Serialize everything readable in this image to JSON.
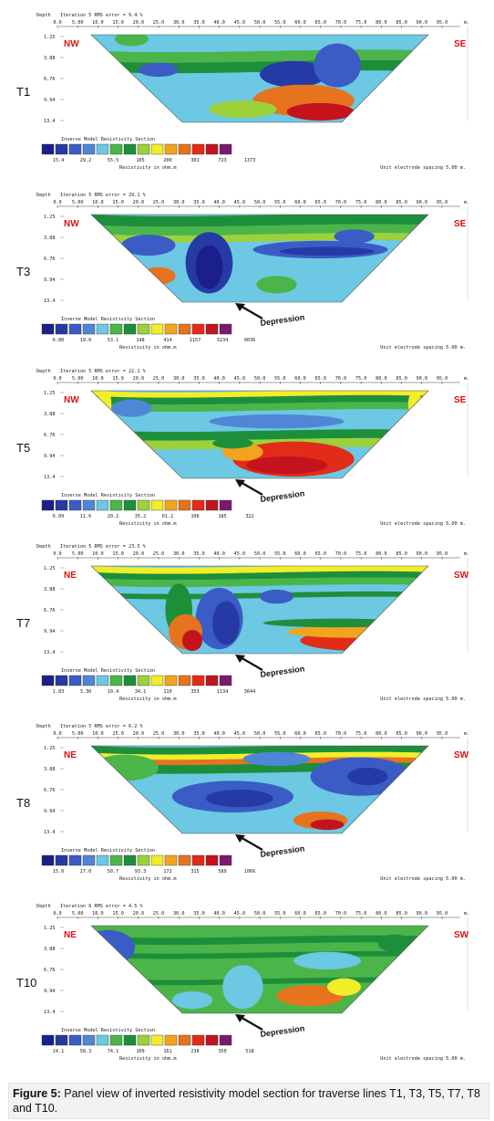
{
  "x_ticks": [
    "0.0",
    "5.00",
    "10.0",
    "15.0",
    "20.0",
    "25.0",
    "30.0",
    "35.0",
    "40.0",
    "45.0",
    "50.0",
    "55.0",
    "60.0",
    "65.0",
    "70.0",
    "75.0",
    "80.0",
    "85.0",
    "90.0",
    "95.0"
  ],
  "depth_label": "Depth",
  "x_unit": "m.",
  "legend_title": "Inverse Model Resistivity Section",
  "legend_units": "Resistivity in ohm.m",
  "spacing_text": "Unit electrode spacing 5.00 m.",
  "palette": [
    "#1a1f8c",
    "#263aa6",
    "#3a5cc4",
    "#4f86d6",
    "#6cc8e3",
    "#4cb54a",
    "#1d8f3a",
    "#9cd13a",
    "#f3ec28",
    "#f1a51e",
    "#e6731e",
    "#e32b1a",
    "#c4131d",
    "#7a1a6e"
  ],
  "depression_label": "Depression",
  "panels": [
    {
      "id": "T1",
      "label": "T1",
      "iteration": "Iteration 5 RMS error = 9.4 %",
      "left_dir": "NW",
      "right_dir": "SE",
      "depths": [
        "1.25",
        "3.88",
        "6.76",
        "9.94",
        "13.4"
      ],
      "legend_values": [
        "15.4",
        "29.2",
        "55.5",
        "105",
        "200",
        "381",
        "723",
        "1373"
      ],
      "spacing": "Unit electrode spacing 5.00 m.",
      "depression": false
    },
    {
      "id": "T3",
      "label": "T3",
      "iteration": "Iteration 5 RMS error = 29.1 %",
      "left_dir": "NW",
      "right_dir": "SE",
      "depths": [
        "1.25",
        "3.88",
        "6.76",
        "9.94",
        "13.4"
      ],
      "legend_values": [
        "6.80",
        "19.0",
        "53.1",
        "148",
        "414",
        "1157",
        "3234",
        "9036"
      ],
      "spacing": "Unit electrode spacing 5.00 m.",
      "depression": true
    },
    {
      "id": "T5",
      "label": "T5",
      "iteration": "Iteration 5 RMS error = 22.1 %",
      "left_dir": "NW",
      "right_dir": "SE",
      "depths": [
        "1.25",
        "3.88",
        "6.76",
        "9.94",
        "13.4"
      ],
      "legend_values": [
        "6.09",
        "11.6",
        "20.2",
        "35.2",
        "61.2",
        "106",
        "185",
        "322"
      ],
      "spacing": "Unit electrode spacing 5.00 m.",
      "depression": true
    },
    {
      "id": "T7",
      "label": "T7",
      "iteration": "Iteration 5 RMS error = 23.5 %",
      "left_dir": "NE",
      "right_dir": "SW",
      "depths": [
        "1.25",
        "3.88",
        "6.76",
        "9.94",
        "13.4"
      ],
      "legend_values": [
        "1.83",
        "3.30",
        "10.4",
        "34.1",
        "110",
        "353",
        "1134",
        "3644"
      ],
      "spacing": "Unit electrode spacing 5.00 m.",
      "depression": true
    },
    {
      "id": "T8",
      "label": "T8",
      "iteration": "Iteration 5 RMS error = 6.2 %",
      "left_dir": "NE",
      "right_dir": "SW",
      "depths": [
        "1.25",
        "3.88",
        "6.76",
        "9.94",
        "13.4"
      ],
      "legend_values": [
        "15.0",
        "27.0",
        "50.7",
        "93.3",
        "172",
        "315",
        "580",
        "1066"
      ],
      "spacing": "Unit electrode spacing 5.00 m.",
      "depression": true
    },
    {
      "id": "T10",
      "label": "T10",
      "iteration": "Iteration 6 RMS error = 4.5 %",
      "left_dir": "NE",
      "right_dir": "SW",
      "depths": [
        "1.25",
        "3.88",
        "6.76",
        "9.94",
        "13.4"
      ],
      "legend_values": [
        "24.1",
        "58.3",
        "74.1",
        "109",
        "161",
        "238",
        "350",
        "518"
      ],
      "spacing": "Unit electrode spacing 5.00 m.",
      "depression": true
    }
  ],
  "caption": {
    "label": "Figure 5:",
    "text": " Panel view of inverted resistivity model section for traverse lines T1, T3, T5, T7, T8 and T10."
  }
}
